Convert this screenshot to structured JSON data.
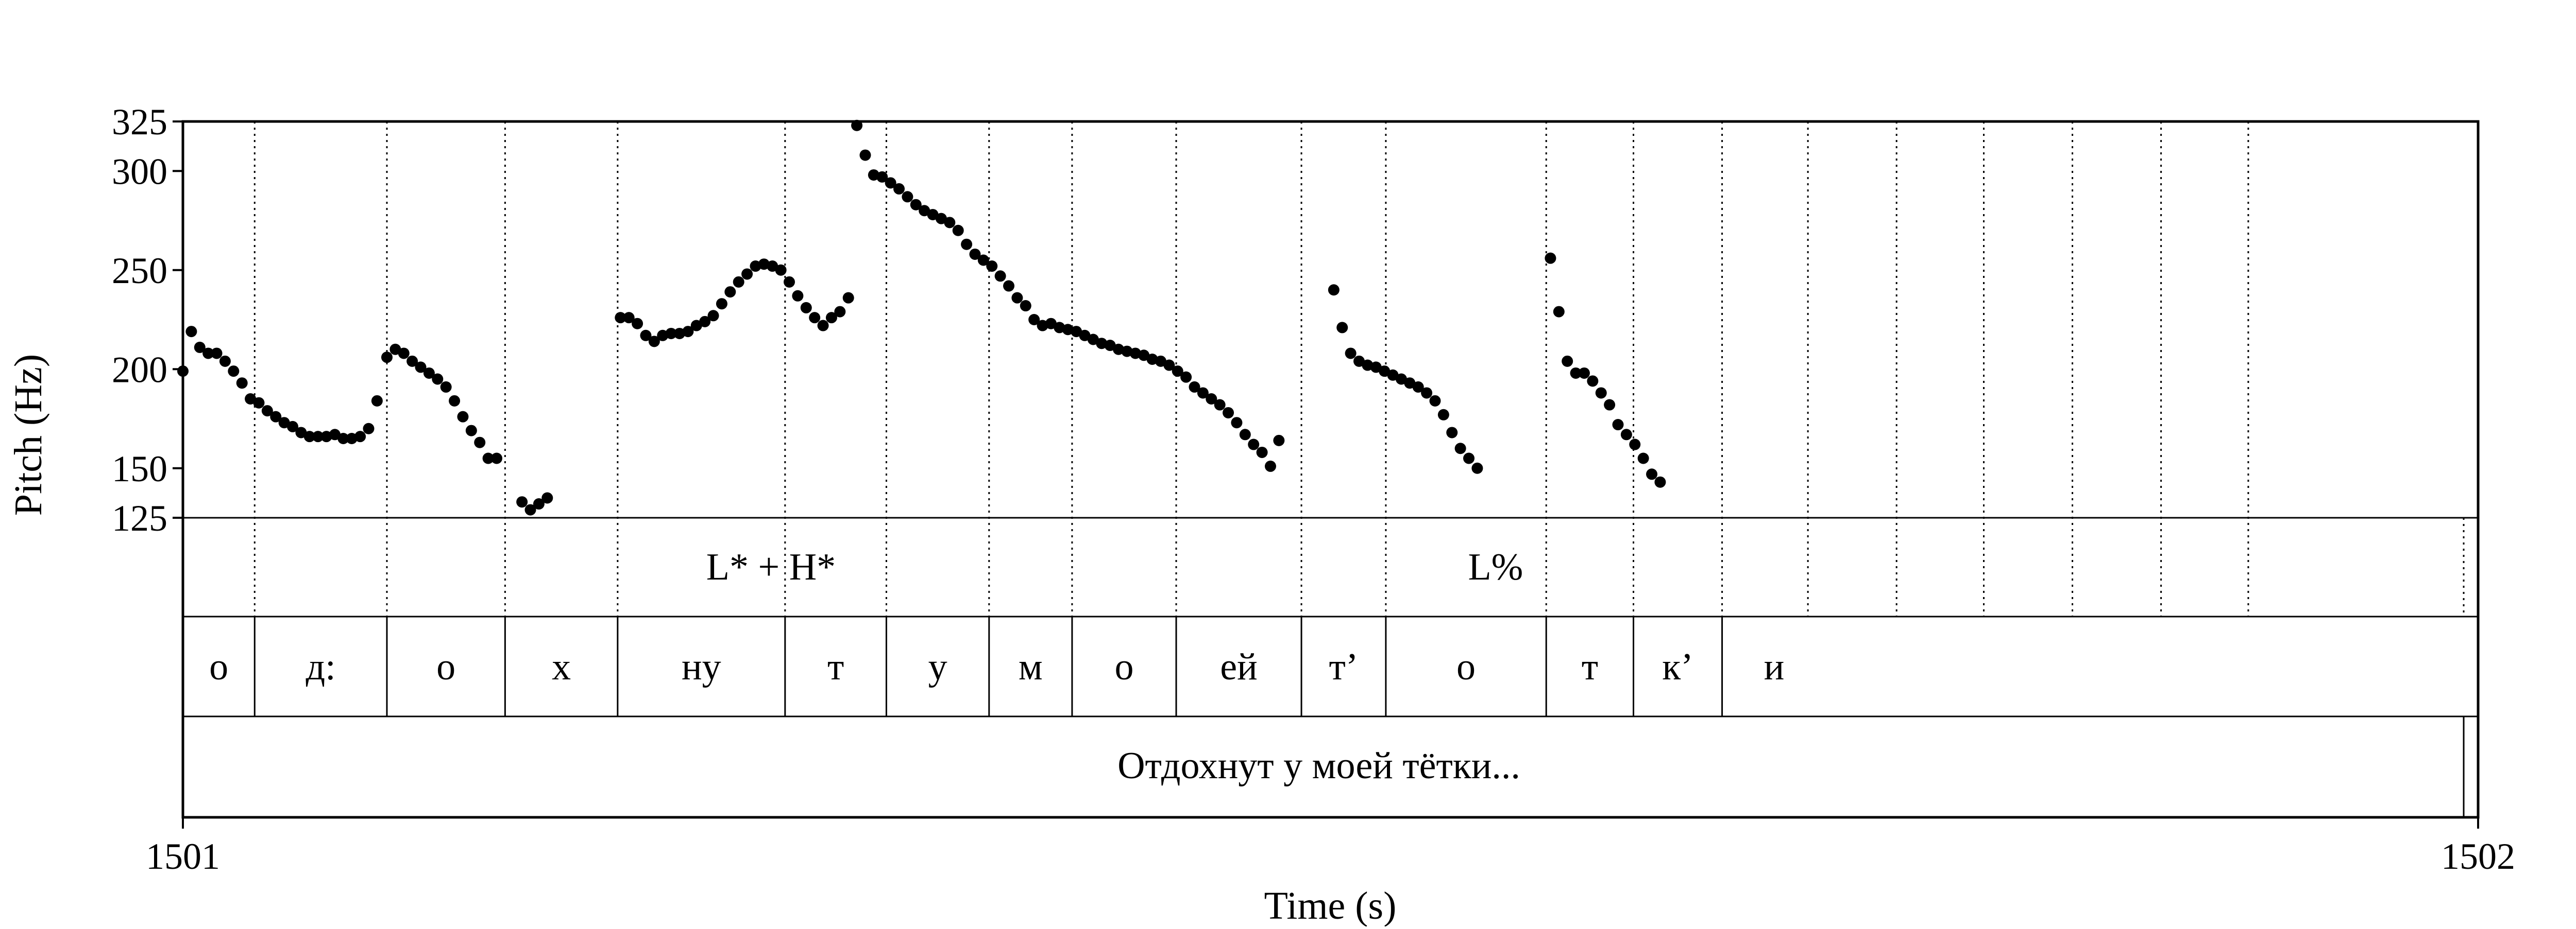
{
  "chart_data": {
    "type": "scatter",
    "xlabel": "Time (s)",
    "ylabel": "Pitch (Hz)",
    "xlim": [
      1501,
      1502
    ],
    "ylim": [
      125,
      325
    ],
    "x_tick_labels": [
      "1501",
      "1502"
    ],
    "y_ticks": [
      125,
      150,
      200,
      250,
      300,
      325
    ],
    "y_tick_labels": [
      "125",
      "150",
      "200",
      "250",
      "300",
      "325"
    ],
    "grid": false,
    "pitch_points": [
      [
        1501.0,
        199
      ],
      [
        1501.006,
        219
      ],
      [
        1501.012,
        211
      ],
      [
        1501.018,
        208
      ],
      [
        1501.024,
        208
      ],
      [
        1501.03,
        204
      ],
      [
        1501.036,
        199
      ],
      [
        1501.042,
        193
      ],
      [
        1501.048,
        185
      ],
      [
        1501.054,
        183
      ],
      [
        1501.06,
        179
      ],
      [
        1501.066,
        176
      ],
      [
        1501.072,
        173
      ],
      [
        1501.078,
        171
      ],
      [
        1501.084,
        168
      ],
      [
        1501.09,
        166
      ],
      [
        1501.096,
        166
      ],
      [
        1501.102,
        166
      ],
      [
        1501.108,
        167
      ],
      [
        1501.114,
        165
      ],
      [
        1501.12,
        165
      ],
      [
        1501.126,
        166
      ],
      [
        1501.132,
        170
      ],
      [
        1501.138,
        184
      ],
      [
        1501.145,
        206
      ],
      [
        1501.151,
        210
      ],
      [
        1501.157,
        208
      ],
      [
        1501.163,
        204
      ],
      [
        1501.169,
        201
      ],
      [
        1501.175,
        198
      ],
      [
        1501.181,
        195
      ],
      [
        1501.187,
        191
      ],
      [
        1501.193,
        184
      ],
      [
        1501.199,
        176
      ],
      [
        1501.205,
        169
      ],
      [
        1501.211,
        163
      ],
      [
        1501.217,
        155
      ],
      [
        1501.223,
        155
      ],
      [
        1501.241,
        133
      ],
      [
        1501.247,
        129
      ],
      [
        1501.253,
        132
      ],
      [
        1501.259,
        135
      ],
      [
        1501.311,
        226
      ],
      [
        1501.317,
        226
      ],
      [
        1501.323,
        223
      ],
      [
        1501.329,
        217
      ],
      [
        1501.335,
        214
      ],
      [
        1501.341,
        217
      ],
      [
        1501.347,
        218
      ],
      [
        1501.353,
        218
      ],
      [
        1501.359,
        219
      ],
      [
        1501.365,
        222
      ],
      [
        1501.371,
        224
      ],
      [
        1501.377,
        227
      ],
      [
        1501.383,
        233
      ],
      [
        1501.389,
        239
      ],
      [
        1501.395,
        244
      ],
      [
        1501.401,
        248
      ],
      [
        1501.407,
        252
      ],
      [
        1501.413,
        253
      ],
      [
        1501.419,
        252
      ],
      [
        1501.425,
        250
      ],
      [
        1501.431,
        244
      ],
      [
        1501.437,
        237
      ],
      [
        1501.443,
        231
      ],
      [
        1501.449,
        226
      ],
      [
        1501.455,
        222
      ],
      [
        1501.461,
        226
      ],
      [
        1501.467,
        229
      ],
      [
        1501.473,
        236
      ],
      [
        1501.479,
        323
      ],
      [
        1501.485,
        308
      ],
      [
        1501.491,
        298
      ],
      [
        1501.497,
        297
      ],
      [
        1501.503,
        294
      ],
      [
        1501.509,
        291
      ],
      [
        1501.515,
        287
      ],
      [
        1501.521,
        283
      ],
      [
        1501.527,
        280
      ],
      [
        1501.533,
        278
      ],
      [
        1501.539,
        276
      ],
      [
        1501.545,
        274
      ],
      [
        1501.551,
        270
      ],
      [
        1501.557,
        263
      ],
      [
        1501.563,
        258
      ],
      [
        1501.569,
        255
      ],
      [
        1501.575,
        252
      ],
      [
        1501.581,
        247
      ],
      [
        1501.587,
        242
      ],
      [
        1501.593,
        236
      ],
      [
        1501.599,
        232
      ],
      [
        1501.605,
        225
      ],
      [
        1501.611,
        222
      ],
      [
        1501.617,
        223
      ],
      [
        1501.623,
        221
      ],
      [
        1501.629,
        220
      ],
      [
        1501.635,
        219
      ],
      [
        1501.641,
        217
      ],
      [
        1501.647,
        215
      ],
      [
        1501.653,
        213
      ],
      [
        1501.659,
        212
      ],
      [
        1501.665,
        210
      ],
      [
        1501.671,
        209
      ],
      [
        1501.677,
        208
      ],
      [
        1501.683,
        207
      ],
      [
        1501.689,
        205
      ],
      [
        1501.695,
        204
      ],
      [
        1501.701,
        202
      ],
      [
        1501.707,
        199
      ],
      [
        1501.713,
        196
      ],
      [
        1501.719,
        191
      ],
      [
        1501.725,
        188
      ],
      [
        1501.731,
        185
      ],
      [
        1501.737,
        182
      ],
      [
        1501.743,
        178
      ],
      [
        1501.749,
        173
      ],
      [
        1501.755,
        167
      ],
      [
        1501.761,
        162
      ],
      [
        1501.767,
        158
      ],
      [
        1501.773,
        151
      ],
      [
        1501.779,
        164
      ],
      [
        1501.818,
        240
      ],
      [
        1501.824,
        221
      ],
      [
        1501.83,
        208
      ],
      [
        1501.836,
        204
      ],
      [
        1501.842,
        202
      ],
      [
        1501.848,
        201
      ],
      [
        1501.854,
        199
      ],
      [
        1501.86,
        197
      ],
      [
        1501.866,
        195
      ],
      [
        1501.872,
        193
      ],
      [
        1501.878,
        191
      ],
      [
        1501.884,
        188
      ],
      [
        1501.89,
        184
      ],
      [
        1501.896,
        177
      ],
      [
        1501.902,
        168
      ],
      [
        1501.908,
        160
      ],
      [
        1501.914,
        155
      ],
      [
        1501.92,
        150
      ],
      [
        1501.972,
        256
      ],
      [
        1501.978,
        229
      ],
      [
        1501.984,
        204
      ],
      [
        1501.99,
        198
      ],
      [
        1501.996,
        198
      ],
      [
        1502.002,
        194
      ],
      [
        1502.008,
        188
      ],
      [
        1502.014,
        182
      ],
      [
        1502.02,
        172
      ],
      [
        1502.026,
        167
      ],
      [
        1502.032,
        162
      ],
      [
        1502.038,
        155
      ],
      [
        1502.044,
        147
      ],
      [
        1502.05,
        143
      ]
    ],
    "tiers": {
      "tones": [
        {
          "time": 1501.418,
          "label": "L* + H*"
        },
        {
          "time": 1501.933,
          "label": "L%"
        }
      ],
      "boundaries": [
        1501.0,
        1501.051,
        1501.145,
        1501.229,
        1501.309,
        1501.428,
        1501.5,
        1501.573,
        1501.632,
        1501.706,
        1501.795,
        1501.855,
        1501.969,
        1502.031,
        1502.094,
        1502.155,
        1502.218,
        1502.28,
        1502.343,
        1502.406,
        1502.468
      ],
      "phones": [
        {
          "start": 1501.0,
          "end": 1501.051,
          "label": "о"
        },
        {
          "start": 1501.051,
          "end": 1501.145,
          "label": "д:"
        },
        {
          "start": 1501.145,
          "end": 1501.229,
          "label": "о"
        },
        {
          "start": 1501.229,
          "end": 1501.309,
          "label": "х"
        },
        {
          "start": 1501.309,
          "end": 1501.428,
          "label": "ну"
        },
        {
          "start": 1501.428,
          "end": 1501.5,
          "label": "т"
        },
        {
          "start": 1501.5,
          "end": 1501.573,
          "label": "у"
        },
        {
          "start": 1501.573,
          "end": 1501.632,
          "label": "м"
        },
        {
          "start": 1501.632,
          "end": 1501.706,
          "label": "о"
        },
        {
          "start": 1501.706,
          "end": 1501.795,
          "label": "ей"
        },
        {
          "start": 1501.795,
          "end": 1501.855,
          "label": "т’"
        },
        {
          "start": 1501.855,
          "end": 1501.969,
          "label": "о"
        },
        {
          "start": 1501.969,
          "end": 1502.031,
          "label": "т"
        },
        {
          "start": 1502.031,
          "end": 1502.094,
          "label": "к’"
        },
        {
          "start": 1502.094,
          "end": 1502.168,
          "label": "и"
        }
      ],
      "sentence": "Отдохнут у моей тётки..."
    }
  }
}
